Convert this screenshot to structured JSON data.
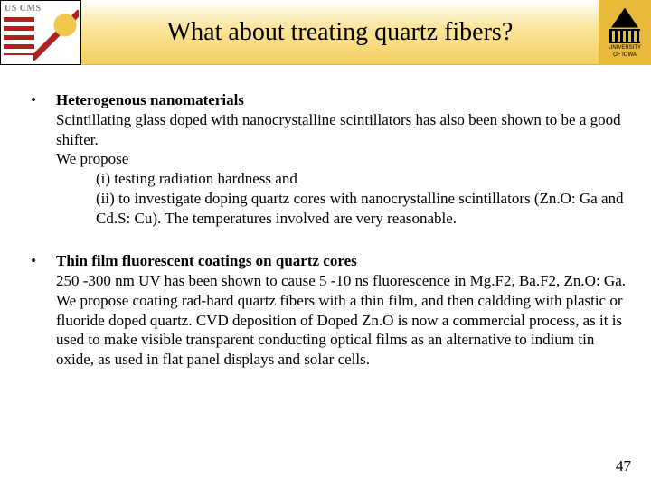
{
  "header": {
    "left_logo_text": "US CMS",
    "title": "What about treating quartz fibers?",
    "right_logo_top": "UNIVERSITY",
    "right_logo_bottom": "OF IOWA"
  },
  "bullets": [
    {
      "heading": "Heterogenous nanomaterials",
      "body1": "Scintillating glass doped with nanocrystalline scintillators has also been shown to be a good shifter.",
      "body2": "We propose",
      "sub1": "(i) testing radiation hardness and",
      "sub2": "(ii) to investigate doping quartz cores with nanocrystalline scintillators (Zn.O: Ga and Cd.S: Cu). The temperatures involved are very reasonable."
    },
    {
      "heading": "Thin film fluorescent coatings on quartz cores",
      "body1": "250 -300 nm UV has been shown to cause 5 -10 ns fluorescence in Mg.F2, Ba.F2, Zn.O: Ga. We propose coating rad-hard quartz fibers with a thin film, and then caldding with plastic or fluoride doped quartz. CVD deposition of Doped Zn.O is now a commercial process, as it is used to make visible transparent conducting optical films as an alternative to indium tin oxide, as used in flat panel displays and solar cells."
    }
  ],
  "page_number": "47",
  "colors": {
    "title_gradient_top": "#ffffff",
    "title_gradient_bottom": "#f6cf5d",
    "right_logo_bg": "#e9b93b",
    "stripe_red": "#b02020"
  }
}
